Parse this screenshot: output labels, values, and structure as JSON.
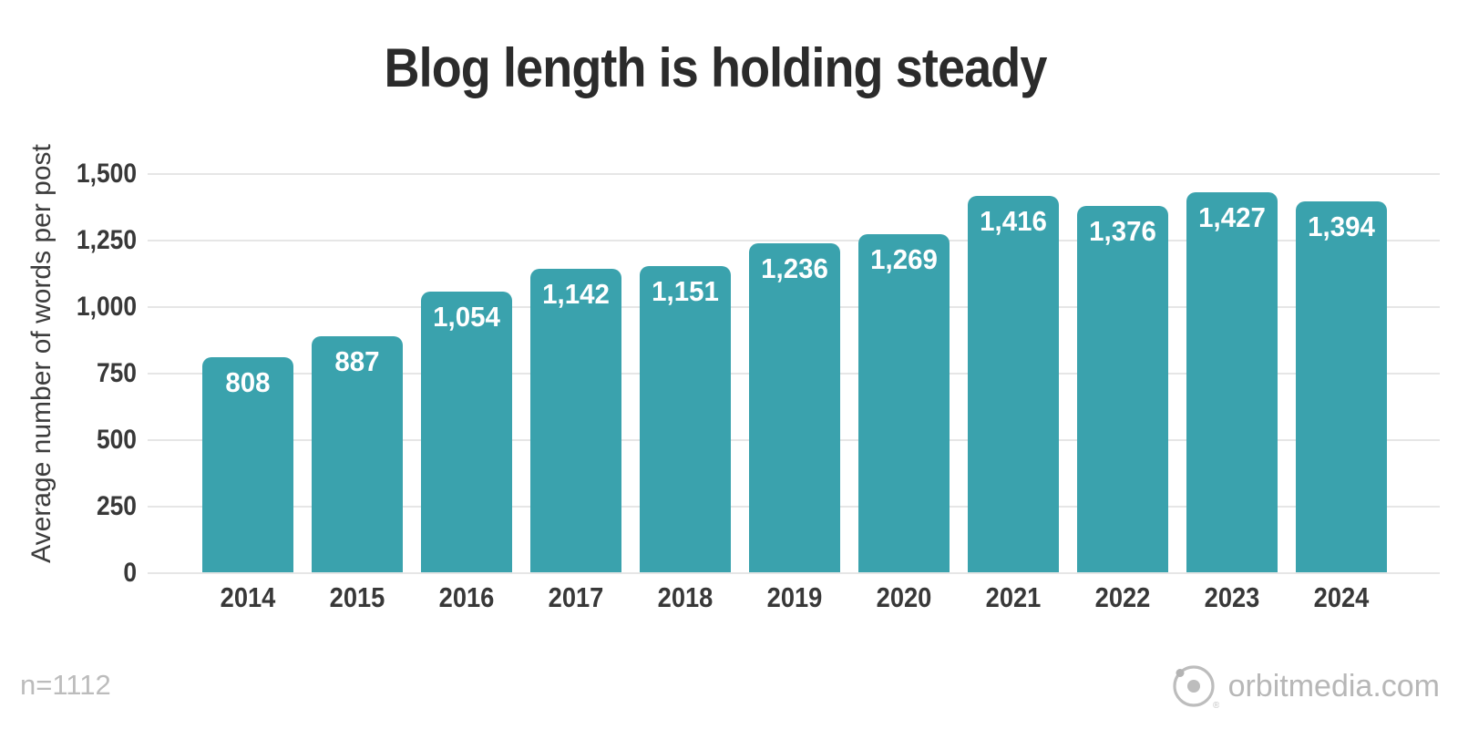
{
  "chart_data": {
    "type": "bar",
    "title": "Blog length is holding steady",
    "xlabel": "",
    "ylabel": "Average number of words per post",
    "categories": [
      "2014",
      "2015",
      "2016",
      "2017",
      "2018",
      "2019",
      "2020",
      "2021",
      "2022",
      "2023",
      "2024"
    ],
    "values": [
      808,
      887,
      1054,
      1142,
      1151,
      1236,
      1269,
      1416,
      1376,
      1427,
      1394
    ],
    "value_labels": [
      "808",
      "887",
      "1,054",
      "1,142",
      "1,151",
      "1,236",
      "1,269",
      "1,416",
      "1,376",
      "1,427",
      "1,394"
    ],
    "ylim": [
      0,
      1500
    ],
    "y_ticks": [
      {
        "value": 0,
        "label": "0"
      },
      {
        "value": 250,
        "label": "250"
      },
      {
        "value": 500,
        "label": "500"
      },
      {
        "value": 750,
        "label": "750"
      },
      {
        "value": 1000,
        "label": "1,000"
      },
      {
        "value": 1250,
        "label": "1,250"
      },
      {
        "value": 1500,
        "label": "1,500"
      }
    ],
    "grid": "horizontal",
    "legend": "none",
    "bar_color": "#3aa2ad",
    "bar_label_color": "#ffffff"
  },
  "footer": {
    "sample_note": "n=1112"
  },
  "branding": {
    "site_label": "orbitmedia.com",
    "logo_icon": "orbit-circle-icon",
    "logo_color": "#bdbdbd"
  },
  "colors": {
    "background": "#ffffff",
    "title_text": "#2b2b2b",
    "axis_text": "#383838",
    "gridline": "#e6e6e6",
    "muted_text": "#bcbcbc"
  }
}
